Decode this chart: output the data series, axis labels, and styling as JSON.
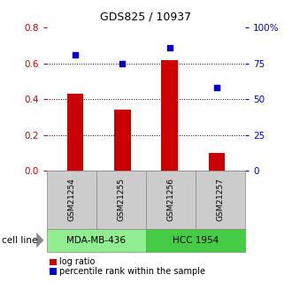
{
  "title": "GDS825 / 10937",
  "samples": [
    "GSM21254",
    "GSM21255",
    "GSM21256",
    "GSM21257"
  ],
  "log_ratio": [
    0.43,
    0.34,
    0.62,
    0.1
  ],
  "percentile": [
    81,
    75,
    86,
    58
  ],
  "bar_color": "#cc0000",
  "dot_color": "#0000cc",
  "ylim_left": [
    0,
    0.8
  ],
  "ylim_right": [
    0,
    100
  ],
  "yticks_left": [
    0,
    0.2,
    0.4,
    0.6,
    0.8
  ],
  "yticks_right": [
    0,
    25,
    50,
    75,
    100
  ],
  "cell_lines": [
    {
      "label": "MDA-MB-436",
      "samples": [
        0,
        1
      ],
      "color": "#90ee90"
    },
    {
      "label": "HCC 1954",
      "samples": [
        2,
        3
      ],
      "color": "#44cc44"
    }
  ],
  "cell_line_label": "cell line",
  "legend_log_ratio": "log ratio",
  "legend_percentile": "percentile rank within the sample",
  "tick_color_left": "#cc0000",
  "tick_color_right": "#0000cc",
  "sample_box_color": "#cccccc"
}
